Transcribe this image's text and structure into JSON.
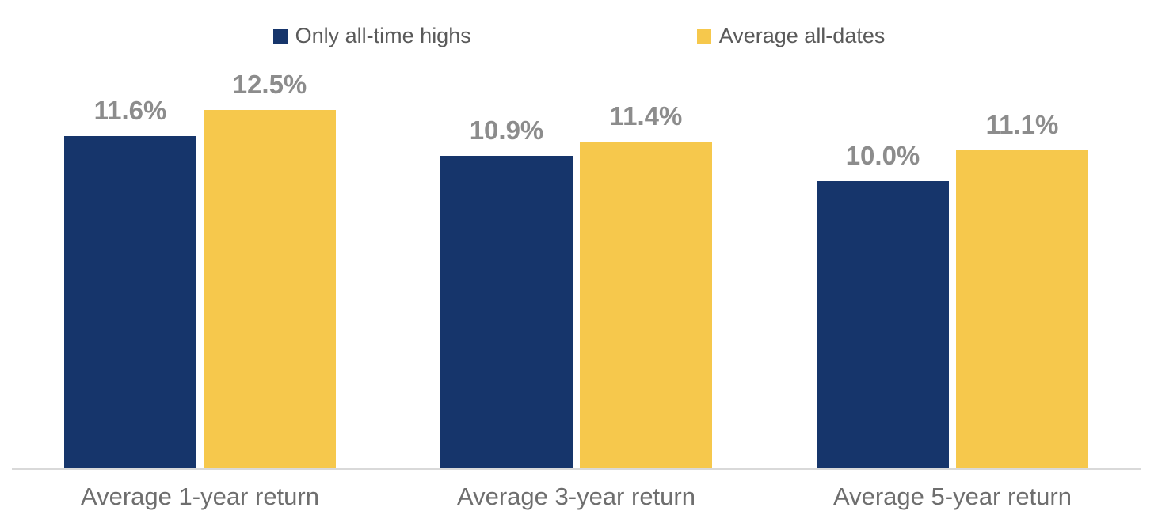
{
  "chart_data": {
    "type": "bar",
    "title": "",
    "categories": [
      "Average 1-year return",
      "Average 3-year return",
      "Average 5-year return"
    ],
    "series": [
      {
        "name": "Only all-time highs",
        "color": "#16356B",
        "values": [
          11.6,
          10.9,
          10.0
        ],
        "labels": [
          "11.6%",
          "10.9%",
          "10.0%"
        ]
      },
      {
        "name": "Average all-dates",
        "color": "#F6C84C",
        "values": [
          12.5,
          11.4,
          11.1
        ],
        "labels": [
          "12.5%",
          "11.4%",
          "11.1%"
        ]
      }
    ],
    "ylim": [
      0,
      16
    ],
    "grid": false,
    "y_axis_visible": false,
    "legend_position": "top",
    "data_label_color": "#8C8C8C",
    "category_label_color": "#6E6E6E",
    "legend_text_color": "#5A5A5A",
    "axis_line_color": "#D9D9D9",
    "background_color": "#FFFFFF"
  }
}
